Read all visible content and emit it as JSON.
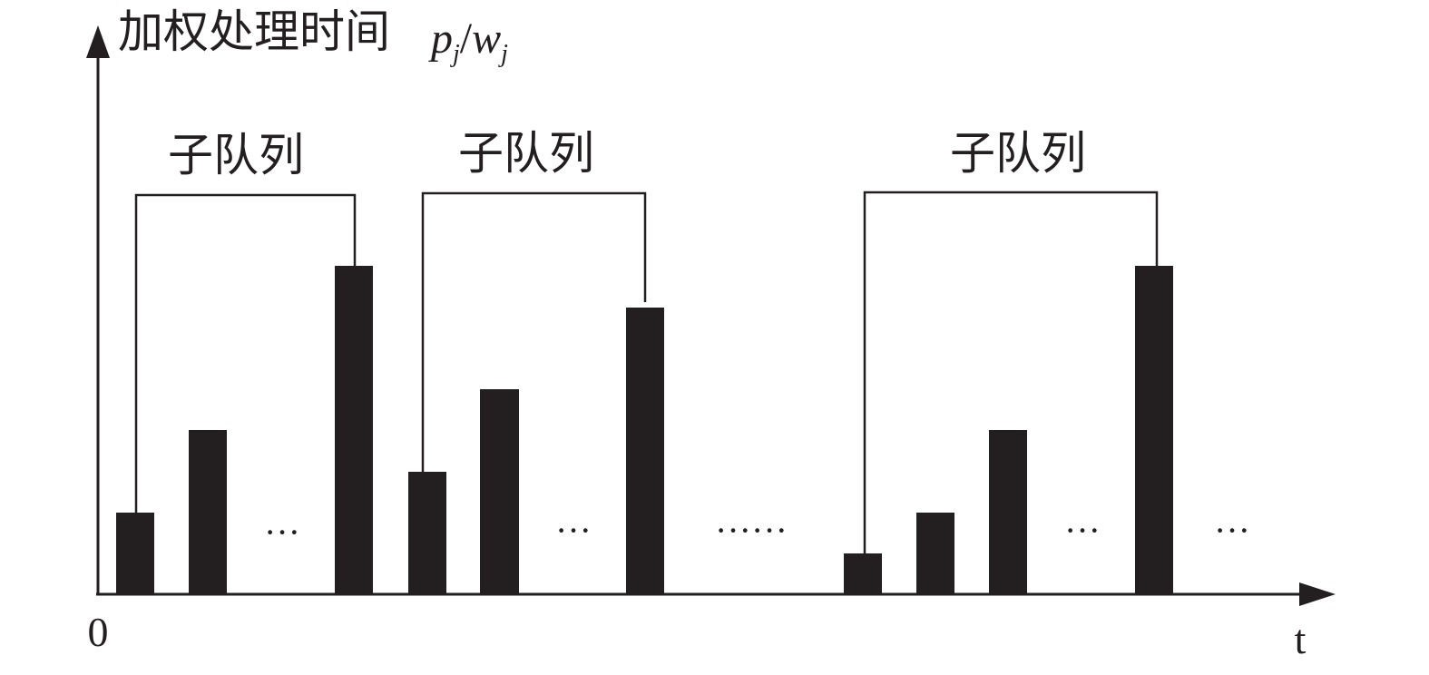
{
  "y_axis": {
    "label": "加权处理时间",
    "numerator": "p",
    "numerator_sub": "j",
    "separator": "/",
    "denominator": "w",
    "denominator_sub": "j"
  },
  "x_axis": {
    "origin": "0",
    "label": "t"
  },
  "groups": [
    {
      "label": "子队列",
      "ellipsis": "···"
    },
    {
      "label": "子队列",
      "ellipsis": "···"
    },
    {
      "label": "子队列",
      "ellipsis": "···"
    }
  ],
  "between_ellipsis": "······",
  "trailing_ellipsis": "···"
}
